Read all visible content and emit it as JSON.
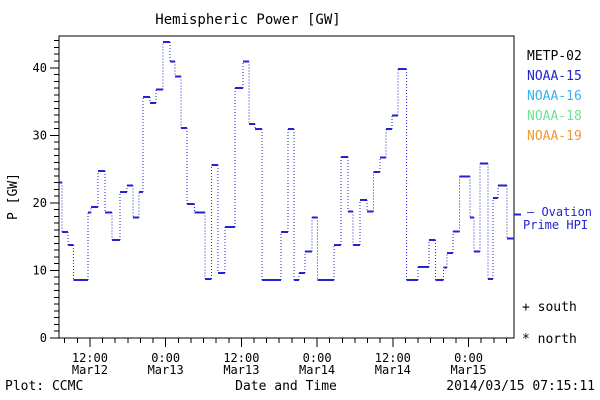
{
  "title": "Hemispheric Power [GW]",
  "colors": {
    "frame": "#000000",
    "accent_blue": "#2323d2",
    "background": "#ffffff"
  },
  "legend": {
    "items": [
      {
        "label": "METP-02",
        "color": "#000000"
      },
      {
        "label": "NOAA-15",
        "color": "#2323d2"
      },
      {
        "label": "NOAA-16",
        "color": "#34b4f0"
      },
      {
        "label": "NOAA-18",
        "color": "#6fe193"
      },
      {
        "label": "NOAA-19",
        "color": "#f2992e"
      }
    ]
  },
  "annotations": {
    "ovation_label_line1": "– Ovation",
    "ovation_label_line2": "Prime HPI",
    "south_marker": "+ south",
    "north_marker": "* north"
  },
  "footer": {
    "plot_credit": "Plot: CCMC",
    "xaxis_title": "Date and Time",
    "generated": "2014/03/15 07:15:11"
  },
  "chart_data": {
    "type": "line",
    "subtype": "step",
    "title": "Hemispheric Power [GW]",
    "xlabel": "Date and Time",
    "ylabel": "P [GW]",
    "x_unit": "hours since 2014-03-12 00:00 UT",
    "xlim": [
      7.1,
      79.2
    ],
    "ylim": [
      0,
      44.7
    ],
    "grid": false,
    "legend_position": "right",
    "x_major_ticks": [
      {
        "hours": 12,
        "time": "12:00",
        "date": "Mar12"
      },
      {
        "hours": 24,
        "time": "0:00",
        "date": "Mar13"
      },
      {
        "hours": 36,
        "time": "12:00",
        "date": "Mar13"
      },
      {
        "hours": 48,
        "time": "0:00",
        "date": "Mar14"
      },
      {
        "hours": 60,
        "time": "12:00",
        "date": "Mar14"
      },
      {
        "hours": 72,
        "time": "0:00",
        "date": "Mar15"
      }
    ],
    "x_minor_tick_hours": 2,
    "y_major_ticks": [
      0,
      10,
      20,
      30,
      40
    ],
    "y_minor_tick": 1,
    "ovation_pointer_gw": 18.3,
    "series": [
      {
        "name": "Ovation Prime HPI",
        "color": "#2323d2",
        "line_style": "solid horizontal steps joined by dotted risers",
        "segments_t0_t1_gw": [
          [
            7.1,
            7.6,
            23.0
          ],
          [
            7.6,
            8.5,
            15.7
          ],
          [
            8.5,
            9.4,
            13.8
          ],
          [
            9.4,
            11.7,
            8.6
          ],
          [
            11.7,
            12.2,
            18.6
          ],
          [
            12.2,
            13.3,
            19.4
          ],
          [
            13.3,
            14.4,
            24.7
          ],
          [
            14.4,
            15.5,
            18.6
          ],
          [
            15.5,
            16.8,
            14.5
          ],
          [
            16.8,
            17.9,
            21.6
          ],
          [
            17.9,
            18.8,
            22.6
          ],
          [
            18.8,
            19.8,
            17.8
          ],
          [
            19.8,
            20.4,
            21.6
          ],
          [
            20.4,
            21.5,
            35.7
          ],
          [
            21.5,
            22.5,
            34.8
          ],
          [
            22.5,
            23.6,
            36.8
          ],
          [
            23.6,
            24.7,
            43.8
          ],
          [
            24.7,
            25.5,
            40.9
          ],
          [
            25.5,
            26.4,
            38.7
          ],
          [
            26.4,
            27.4,
            31.1
          ],
          [
            27.4,
            28.6,
            19.8
          ],
          [
            28.6,
            30.2,
            18.6
          ],
          [
            30.2,
            31.3,
            8.7
          ],
          [
            31.3,
            32.3,
            25.6
          ],
          [
            32.3,
            33.4,
            9.6
          ],
          [
            33.4,
            35.0,
            16.4
          ],
          [
            35.0,
            36.25,
            37.0
          ],
          [
            36.25,
            37.2,
            40.9
          ],
          [
            37.2,
            38.15,
            31.7
          ],
          [
            38.15,
            39.3,
            30.9
          ],
          [
            39.3,
            42.3,
            8.6
          ],
          [
            42.3,
            43.4,
            15.7
          ],
          [
            43.4,
            44.3,
            30.9
          ],
          [
            44.3,
            45.1,
            8.6
          ],
          [
            45.1,
            46.1,
            9.6
          ],
          [
            46.1,
            47.2,
            12.8
          ],
          [
            47.2,
            48.1,
            17.8
          ],
          [
            48.1,
            50.7,
            8.6
          ],
          [
            50.7,
            51.8,
            13.8
          ],
          [
            51.8,
            52.9,
            26.8
          ],
          [
            52.9,
            53.7,
            18.7
          ],
          [
            53.7,
            54.8,
            13.8
          ],
          [
            54.8,
            55.9,
            20.4
          ],
          [
            55.9,
            56.9,
            18.7
          ],
          [
            56.9,
            58.0,
            24.6
          ],
          [
            58.0,
            58.9,
            26.7
          ],
          [
            58.9,
            59.9,
            30.9
          ],
          [
            59.9,
            60.8,
            32.9
          ],
          [
            60.8,
            62.2,
            39.8
          ],
          [
            62.2,
            64.0,
            8.6
          ],
          [
            64.0,
            65.7,
            10.5
          ],
          [
            65.7,
            66.8,
            14.5
          ],
          [
            66.8,
            68.0,
            8.6
          ],
          [
            68.0,
            68.6,
            10.4
          ],
          [
            68.6,
            69.5,
            12.6
          ],
          [
            69.5,
            70.6,
            15.8
          ],
          [
            70.6,
            72.2,
            23.9
          ],
          [
            72.2,
            72.9,
            17.8
          ],
          [
            72.9,
            73.8,
            12.8
          ],
          [
            73.8,
            75.1,
            25.8
          ],
          [
            75.1,
            75.9,
            8.7
          ],
          [
            75.9,
            76.7,
            20.7
          ],
          [
            76.7,
            78.1,
            22.6
          ],
          [
            78.1,
            79.2,
            14.7
          ]
        ]
      }
    ]
  }
}
